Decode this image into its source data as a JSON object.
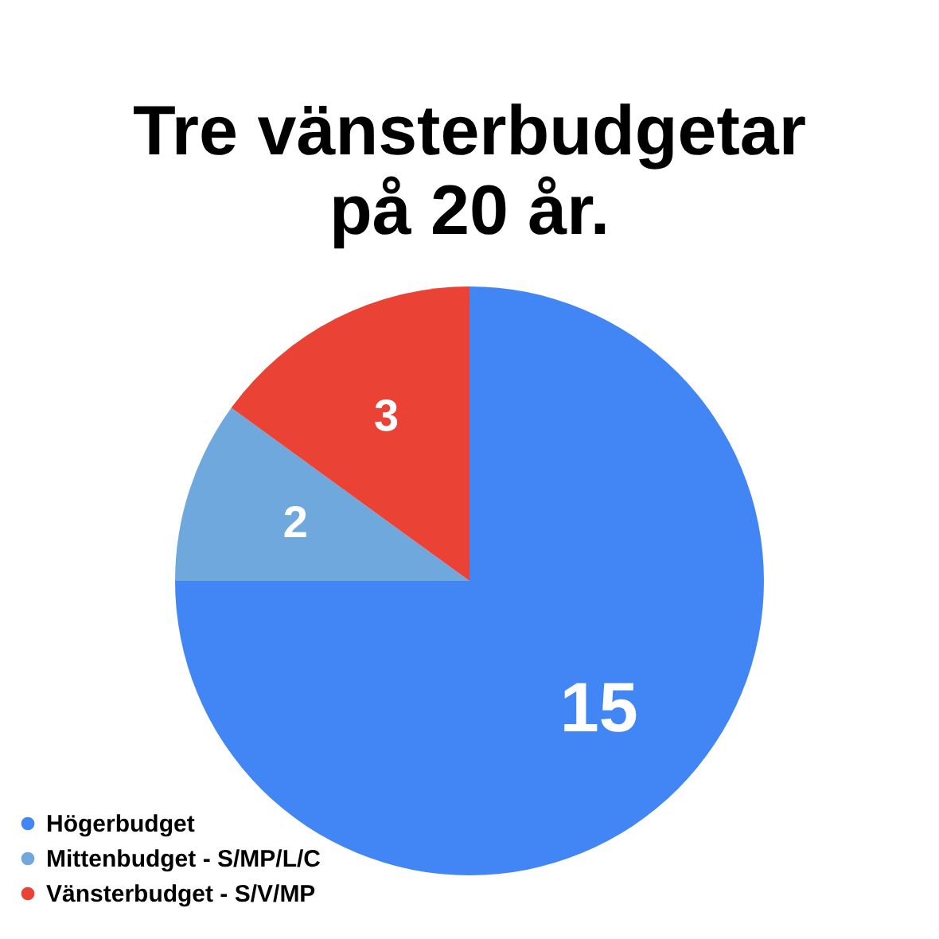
{
  "chart_data": {
    "type": "pie",
    "title": "Tre vänsterbudgetar på 20 år.",
    "categories": [
      "Högerbudget",
      "Mittenbudget - S/MP/L/C",
      "Vänsterbudget - S/V/MP"
    ],
    "values": [
      15,
      2,
      3
    ],
    "colors": [
      "#4285f4",
      "#6fa8dc",
      "#ea4335"
    ],
    "data_labels": true,
    "legend": "bottom left"
  }
}
